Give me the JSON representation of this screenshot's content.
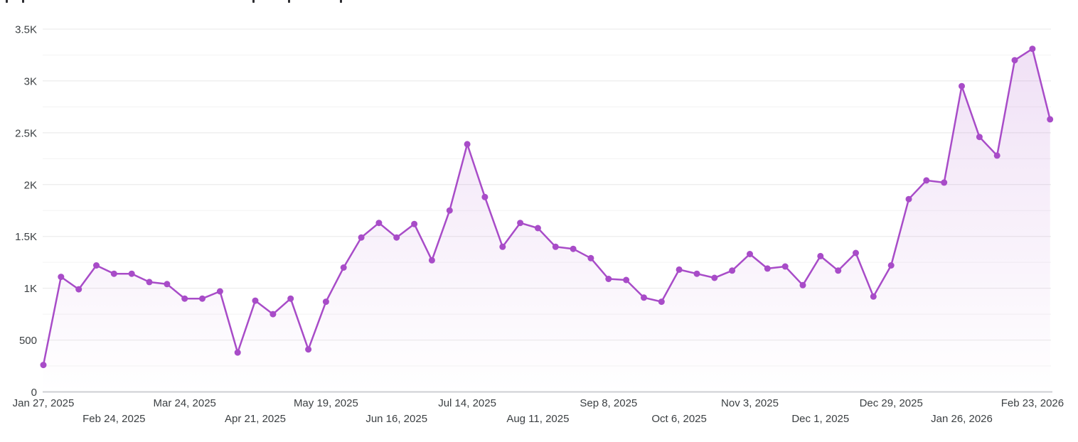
{
  "header": {
    "clipped_fragments_x": [
      8,
      31,
      355,
      405,
      478
    ]
  },
  "chart_data": {
    "type": "area",
    "title": "",
    "subtitle": "",
    "xlabel": "",
    "ylabel": "",
    "legend": "none",
    "grid": "horizontal",
    "ylim": [
      0,
      3500
    ],
    "y_major_step": 500,
    "y_minor_step": 250,
    "x_tick_every": 4,
    "y_tick_labels": [
      "0",
      "500",
      "1K",
      "1.5K",
      "2K",
      "2.5K",
      "3K",
      "3.5K"
    ],
    "x_tick_labels": [
      "Jan 27, 2025",
      "Feb 24, 2025",
      "Mar 24, 2025",
      "Apr 21, 2025",
      "May 19, 2025",
      "Jun 16, 2025",
      "Jul 14, 2025",
      "Aug 11, 2025",
      "Sep 8, 2025",
      "Oct 6, 2025",
      "Nov 3, 2025",
      "Dec 1, 2025",
      "Dec 29, 2025",
      "Jan 26, 2026",
      "Feb 23, 2026"
    ],
    "x": [
      "Jan 27, 2025",
      "Feb 3, 2025",
      "Feb 10, 2025",
      "Feb 17, 2025",
      "Feb 24, 2025",
      "Mar 3, 2025",
      "Mar 10, 2025",
      "Mar 17, 2025",
      "Mar 24, 2025",
      "Mar 31, 2025",
      "Apr 7, 2025",
      "Apr 14, 2025",
      "Apr 21, 2025",
      "Apr 28, 2025",
      "May 5, 2025",
      "May 12, 2025",
      "May 19, 2025",
      "May 26, 2025",
      "Jun 2, 2025",
      "Jun 9, 2025",
      "Jun 16, 2025",
      "Jun 23, 2025",
      "Jun 30, 2025",
      "Jul 7, 2025",
      "Jul 14, 2025",
      "Jul 21, 2025",
      "Jul 28, 2025",
      "Aug 4, 2025",
      "Aug 11, 2025",
      "Aug 18, 2025",
      "Aug 25, 2025",
      "Sep 1, 2025",
      "Sep 8, 2025",
      "Sep 15, 2025",
      "Sep 22, 2025",
      "Sep 29, 2025",
      "Oct 6, 2025",
      "Oct 13, 2025",
      "Oct 20, 2025",
      "Oct 27, 2025",
      "Nov 3, 2025",
      "Nov 10, 2025",
      "Nov 17, 2025",
      "Nov 24, 2025",
      "Dec 1, 2025",
      "Dec 8, 2025",
      "Dec 15, 2025",
      "Dec 22, 2025",
      "Dec 29, 2025",
      "Jan 5, 2026",
      "Jan 12, 2026",
      "Jan 19, 2026",
      "Jan 26, 2026",
      "Feb 2, 2026",
      "Feb 9, 2026",
      "Feb 16, 2026",
      "Feb 23, 2026",
      "Mar 2, 2026"
    ],
    "values": [
      260,
      1110,
      990,
      1220,
      1140,
      1140,
      1060,
      1040,
      900,
      900,
      970,
      380,
      880,
      750,
      900,
      410,
      870,
      1200,
      1490,
      1630,
      1490,
      1620,
      1270,
      1750,
      2390,
      1880,
      1400,
      1630,
      1580,
      1400,
      1380,
      1290,
      1090,
      1080,
      910,
      870,
      1180,
      1140,
      1100,
      1170,
      1330,
      1190,
      1210,
      1030,
      1310,
      1170,
      1340,
      920,
      1220,
      1860,
      2040,
      2020,
      2950,
      2460,
      2280,
      3200,
      3310,
      2630
    ],
    "colors": {
      "line": "#A84CC8",
      "marker": "#A84CC8",
      "area_top": "rgba(168,76,200,0.17)",
      "area_bottom": "rgba(168,76,200,0)",
      "grid_major": "#E8E8E8",
      "grid_minor": "#F3F3F3",
      "axis_line": "#CDCFD3",
      "tick_text": "#3C4043"
    }
  }
}
